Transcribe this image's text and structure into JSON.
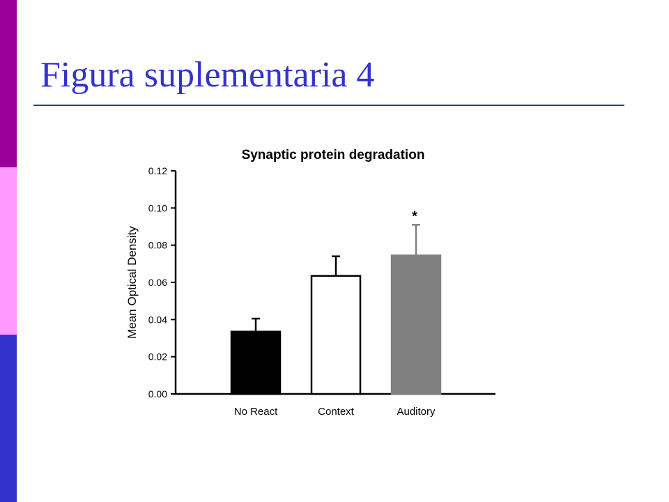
{
  "slide": {
    "title": "Figura suplementaria 4",
    "title_color": "#3333cc",
    "rule_color": "#333399",
    "sidebar_colors": [
      "#990099",
      "#ff99ff",
      "#3333cc"
    ]
  },
  "chart_data": {
    "type": "bar",
    "title": "Synaptic protein degradation",
    "xlabel": "",
    "ylabel": "Mean Optical Density",
    "categories": [
      "No React",
      "Context",
      "Auditory"
    ],
    "values": [
      0.0335,
      0.0635,
      0.0745
    ],
    "errors": [
      0.007,
      0.0105,
      0.0165
    ],
    "bar_fill_colors": [
      "#000000",
      "#ffffff",
      "#808080"
    ],
    "annotations": [
      "",
      "",
      "*"
    ],
    "ylim": [
      0,
      0.12
    ],
    "yticks": [
      "0.00",
      "0.02",
      "0.04",
      "0.06",
      "0.08",
      "0.10",
      "0.12"
    ],
    "grid": false,
    "legend": "none"
  }
}
